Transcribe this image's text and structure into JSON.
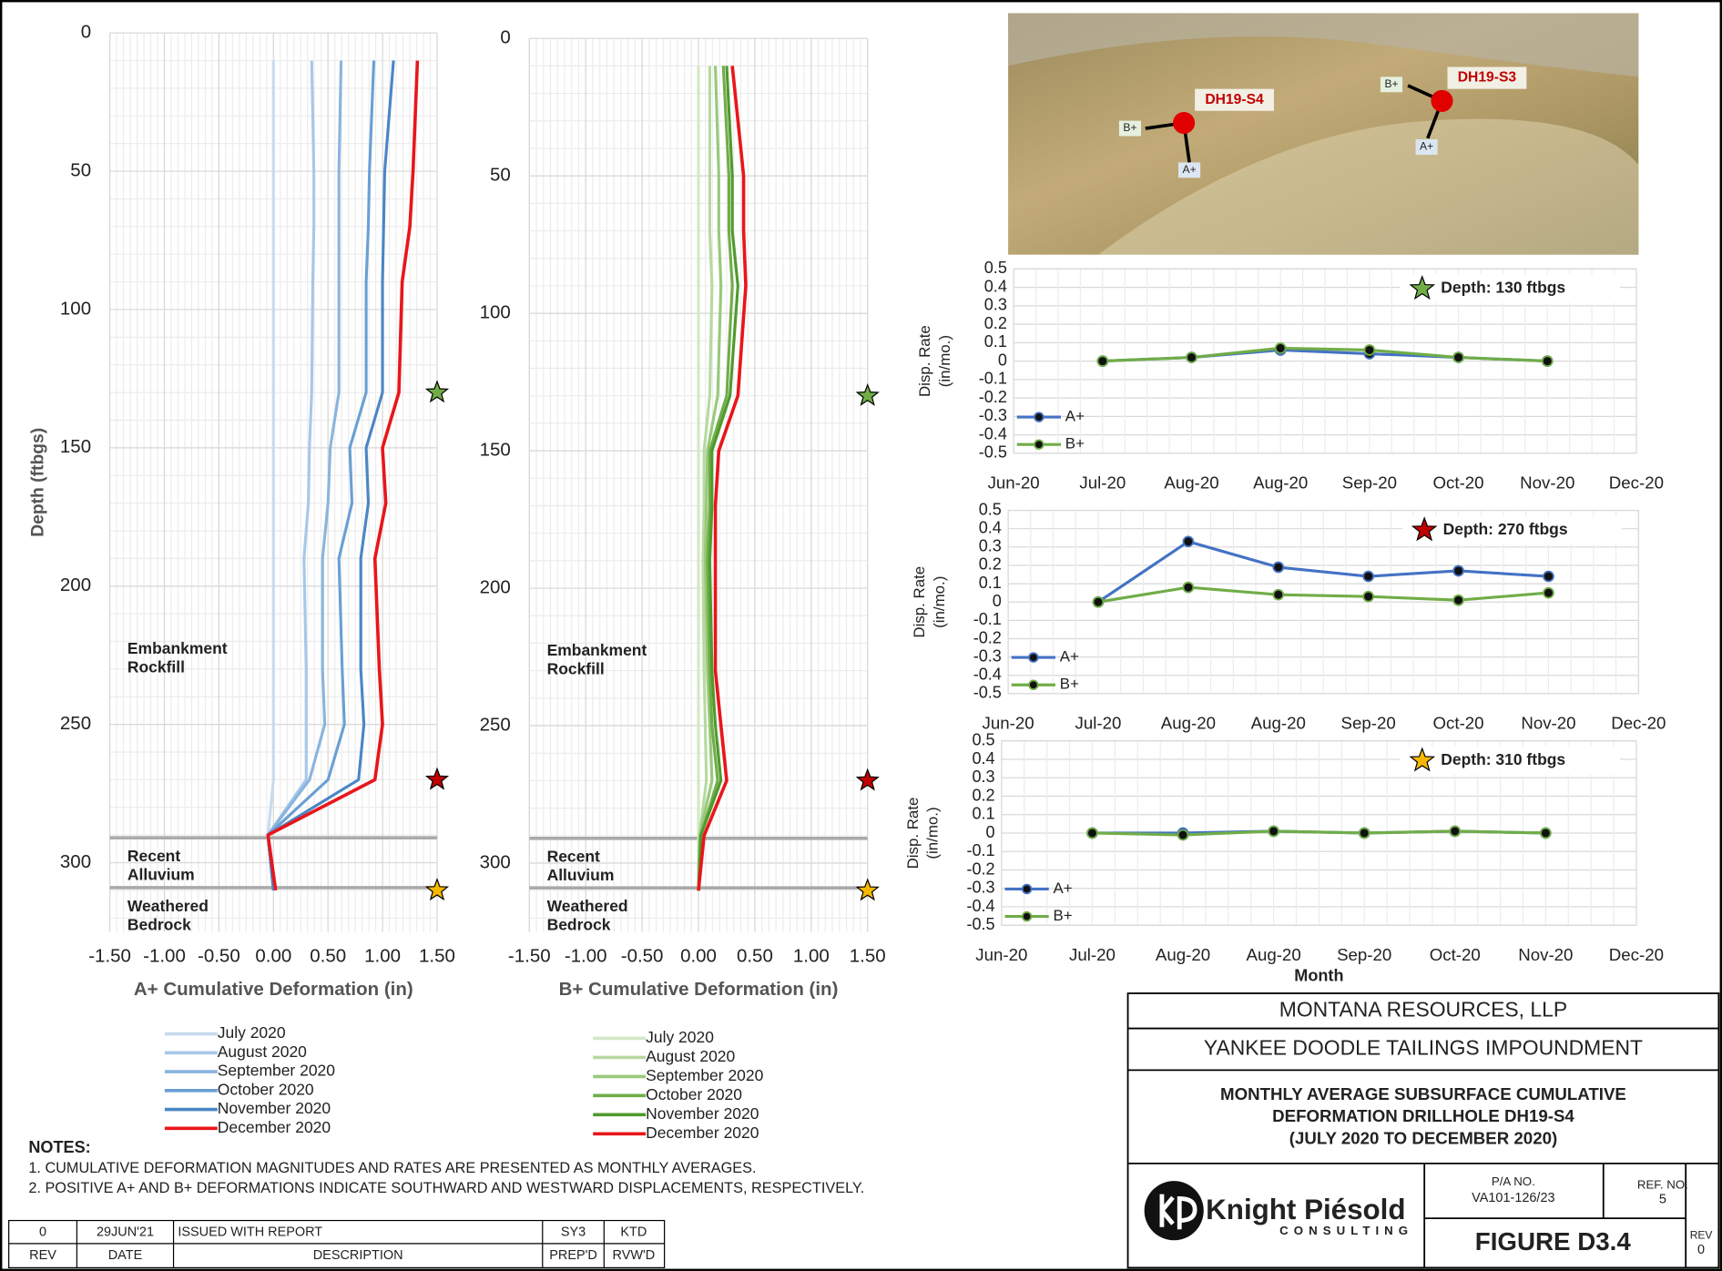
{
  "chart_data": [
    {
      "type": "profile",
      "x_label": "A+ Cumulative Deformation (in)",
      "y_label": "Depth (ftbgs)",
      "depth": [
        10,
        50,
        70,
        90,
        130,
        150,
        170,
        190,
        230,
        250,
        270,
        290,
        310
      ],
      "series": [
        {
          "name": "July 2020",
          "color": "#c6dbef",
          "values": [
            0,
            0,
            0,
            0,
            0,
            0,
            0,
            0,
            0,
            0,
            0,
            -0.05,
            0
          ]
        },
        {
          "name": "August  2020",
          "color": "#a6c8e8",
          "values": [
            0.35,
            0.37,
            0.37,
            0.36,
            0.35,
            0.33,
            0.32,
            0.28,
            0.3,
            0.3,
            0.3,
            -0.05,
            0
          ]
        },
        {
          "name": "September 2020",
          "color": "#8ab4de",
          "values": [
            0.62,
            0.6,
            0.6,
            0.6,
            0.6,
            0.52,
            0.5,
            0.45,
            0.45,
            0.47,
            0.33,
            -0.05,
            0
          ]
        },
        {
          "name": "October 2020",
          "color": "#6a9fd4",
          "values": [
            0.92,
            0.88,
            0.87,
            0.85,
            0.85,
            0.7,
            0.72,
            0.6,
            0.63,
            0.65,
            0.5,
            -0.05,
            0
          ]
        },
        {
          "name": "November 2020",
          "color": "#4a86c5",
          "values": [
            1.1,
            1.02,
            1.01,
            1.0,
            1.0,
            0.85,
            0.87,
            0.8,
            0.8,
            0.83,
            0.78,
            -0.05,
            0
          ]
        },
        {
          "name": "December 2020",
          "color": "#e8161b",
          "values": [
            1.32,
            1.28,
            1.25,
            1.18,
            1.15,
            1.0,
            1.03,
            0.93,
            0.97,
            1.0,
            0.93,
            -0.05,
            0.02
          ]
        }
      ],
      "xlim": [
        -1.5,
        1.5
      ],
      "xticks": [
        {
          "value": -1.5,
          "label": "-1.50"
        },
        {
          "value": -1,
          "label": "-1.00"
        },
        {
          "value": -0.5,
          "label": "-0.50"
        },
        {
          "value": 0,
          "label": "0.00"
        },
        {
          "value": 0.5,
          "label": "0.50"
        },
        {
          "value": 1,
          "label": "1.00"
        },
        {
          "value": 1.5,
          "label": "1.50"
        }
      ],
      "ylim": [
        0,
        325
      ],
      "yticks": [
        0,
        50,
        100,
        150,
        200,
        250,
        300
      ],
      "y_inverted": true,
      "grid": true,
      "layers": [
        {
          "lines": [
            "Embankment",
            "Rockfill"
          ]
        },
        {
          "lines": [
            "Recent",
            "Alluvium"
          ]
        },
        {
          "lines": [
            "Weathered",
            "Bedrock"
          ]
        }
      ],
      "layer_boundaries": [
        291,
        309
      ],
      "markers": [
        {
          "depth": 130,
          "color": "#70ad47"
        },
        {
          "depth": 270,
          "color": "#c00000"
        },
        {
          "depth": 310,
          "color": "#f5b700"
        }
      ]
    },
    {
      "type": "profile",
      "x_label": "B+ Cumulative Deformation (in)",
      "depth": [
        10,
        50,
        70,
        90,
        130,
        150,
        170,
        190,
        230,
        250,
        270,
        290,
        310
      ],
      "series": [
        {
          "name": "July 2020",
          "color": "#d3e8c6",
          "values": [
            0,
            0,
            0,
            0,
            0,
            0,
            0,
            0,
            0,
            0,
            0,
            0,
            0
          ]
        },
        {
          "name": "August 2020",
          "color": "#b7d9a0",
          "values": [
            0.1,
            0.1,
            0.1,
            0.12,
            0.1,
            0.05,
            0.05,
            0.04,
            0.05,
            0.06,
            0.07,
            0.01,
            0
          ]
        },
        {
          "name": "September 2020",
          "color": "#98c97a",
          "values": [
            0.15,
            0.18,
            0.18,
            0.2,
            0.17,
            0.08,
            0.07,
            0.06,
            0.08,
            0.1,
            0.12,
            0.01,
            0
          ]
        },
        {
          "name": "October 2020",
          "color": "#70ad47",
          "values": [
            0.22,
            0.27,
            0.27,
            0.3,
            0.25,
            0.1,
            0.1,
            0.08,
            0.1,
            0.12,
            0.17,
            0.02,
            0
          ]
        },
        {
          "name": "November 2020",
          "color": "#4f9a2e",
          "values": [
            0.25,
            0.3,
            0.3,
            0.35,
            0.28,
            0.12,
            0.12,
            0.1,
            0.12,
            0.15,
            0.2,
            0.02,
            0
          ]
        },
        {
          "name": "December 2020",
          "color": "#e8161b",
          "values": [
            0.3,
            0.4,
            0.4,
            0.42,
            0.35,
            0.18,
            0.15,
            0.15,
            0.15,
            0.2,
            0.25,
            0.05,
            0
          ]
        }
      ],
      "xlim": [
        -1.5,
        1.5
      ],
      "xticks": [
        {
          "value": -1.5,
          "label": "-1.50"
        },
        {
          "value": -1,
          "label": "-1.00"
        },
        {
          "value": -0.5,
          "label": "-0.50"
        },
        {
          "value": 0,
          "label": "0.00"
        },
        {
          "value": 0.5,
          "label": "0.50"
        },
        {
          "value": 1,
          "label": "1.00"
        },
        {
          "value": 1.5,
          "label": "1.50"
        }
      ],
      "ylim": [
        0,
        325
      ],
      "yticks": [
        0,
        50,
        100,
        150,
        200,
        250,
        300
      ],
      "y_inverted": true,
      "grid": true,
      "layers": [
        {
          "lines": [
            "Embankment",
            "Rockfill"
          ]
        },
        {
          "lines": [
            "Recent",
            "Alluvium"
          ]
        },
        {
          "lines": [
            "Weathered",
            "Bedrock"
          ]
        }
      ],
      "layer_boundaries": [
        291,
        309
      ],
      "markers": [
        {
          "depth": 130,
          "color": "#70ad47"
        },
        {
          "depth": 270,
          "color": "#c00000"
        },
        {
          "depth": 310,
          "color": "#f5b700"
        }
      ]
    },
    {
      "type": "line",
      "title": "Depth: 130 ftbgs",
      "marker_color": "#70ad47",
      "y_label": [
        "Disp. Rate",
        "(in/mo.)"
      ],
      "categories": [
        "Jun-20",
        "Jul-20",
        "Aug-20",
        "Aug-20",
        "Sep-20",
        "Oct-20",
        "Nov-20",
        "Dec-20"
      ],
      "series": [
        {
          "name": "A+",
          "color": "#4472c4",
          "values": [
            null,
            0,
            0.02,
            0.06,
            0.04,
            0.02,
            0,
            null
          ]
        },
        {
          "name": "B+",
          "color": "#70ad47",
          "values": [
            null,
            0,
            0.02,
            0.07,
            0.06,
            0.02,
            0,
            null
          ]
        }
      ],
      "ylim": [
        -0.5,
        0.5
      ],
      "yticks": [
        0.5,
        0.4,
        0.3,
        0.2,
        0.1,
        0,
        -0.1,
        -0.2,
        -0.3,
        -0.4,
        -0.5
      ],
      "grid": true,
      "legend": "lower left"
    },
    {
      "type": "line",
      "title": "Depth: 270 ftbgs",
      "marker_color": "#c00000",
      "y_label": [
        "Disp. Rate",
        "(in/mo.)"
      ],
      "categories": [
        "Jun-20",
        "Jul-20",
        "Aug-20",
        "Aug-20",
        "Sep-20",
        "Oct-20",
        "Nov-20",
        "Dec-20"
      ],
      "series": [
        {
          "name": "A+",
          "color": "#4472c4",
          "values": [
            null,
            0,
            0.33,
            0.19,
            0.14,
            0.17,
            0.14,
            null
          ]
        },
        {
          "name": "B+",
          "color": "#70ad47",
          "values": [
            null,
            0,
            0.08,
            0.04,
            0.03,
            0.01,
            0.05,
            null
          ]
        }
      ],
      "ylim": [
        -0.5,
        0.5
      ],
      "yticks": [
        0.5,
        0.4,
        0.3,
        0.2,
        0.1,
        0,
        -0.1,
        -0.2,
        -0.3,
        -0.4,
        -0.5
      ],
      "grid": true,
      "legend": "lower left"
    },
    {
      "type": "line",
      "title": "Depth: 310 ftbgs",
      "marker_color": "#f5b700",
      "y_label": [
        "Disp. Rate",
        "(in/mo.)"
      ],
      "x_label": "Month",
      "categories": [
        "Jun-20",
        "Jul-20",
        "Aug-20",
        "Aug-20",
        "Sep-20",
        "Oct-20",
        "Nov-20",
        "Dec-20"
      ],
      "series": [
        {
          "name": "A+",
          "color": "#4472c4",
          "values": [
            null,
            0,
            0,
            0.01,
            0,
            0.01,
            0,
            null
          ]
        },
        {
          "name": "B+",
          "color": "#70ad47",
          "values": [
            null,
            0,
            -0.01,
            0.01,
            0,
            0.01,
            0,
            null
          ]
        }
      ],
      "ylim": [
        -0.5,
        0.5
      ],
      "yticks": [
        0.5,
        0.4,
        0.3,
        0.2,
        0.1,
        0,
        -0.1,
        -0.2,
        -0.3,
        -0.4,
        -0.5
      ],
      "grid": true,
      "legend": "lower left"
    }
  ],
  "photo": {
    "labels": [
      "DH19-S4",
      "DH19-S3",
      "B+",
      "A+",
      "B+",
      "A+"
    ]
  },
  "notes": {
    "title": "NOTES:",
    "items": [
      "1. CUMULATIVE DEFORMATION MAGNITUDES AND RATES ARE PRESENTED AS MONTHLY AVERAGES.",
      "2. POSITIVE A+ AND B+ DEFORMATIONS INDICATE SOUTHWARD AND WESTWARD DISPLACEMENTS, RESPECTIVELY."
    ]
  },
  "revision_table": {
    "rows": [
      [
        "0",
        "29JUN'21",
        "ISSUED WITH REPORT",
        "SY3",
        "KTD"
      ],
      [
        "REV",
        "DATE",
        "DESCRIPTION",
        "PREP'D",
        "RVW'D"
      ]
    ]
  },
  "title_block": {
    "client": "MONTANA RESOURCES, LLP",
    "project": "YANKEE DOODLE TAILINGS IMPOUNDMENT",
    "title": [
      "MONTHLY AVERAGE SUBSURFACE CUMULATIVE",
      "DEFORMATION DRILLHOLE DH19-S4",
      "(JULY 2020 TO DECEMBER 2020)"
    ],
    "company": "Knight Piésold",
    "company_sub": "CONSULTING",
    "pa_label": "P/A NO.",
    "pa_no": "VA101-126/23",
    "ref_label": "REF. NO.",
    "ref_no": "5",
    "figure": "FIGURE D3.4",
    "rev_label": "REV",
    "rev": "0"
  }
}
